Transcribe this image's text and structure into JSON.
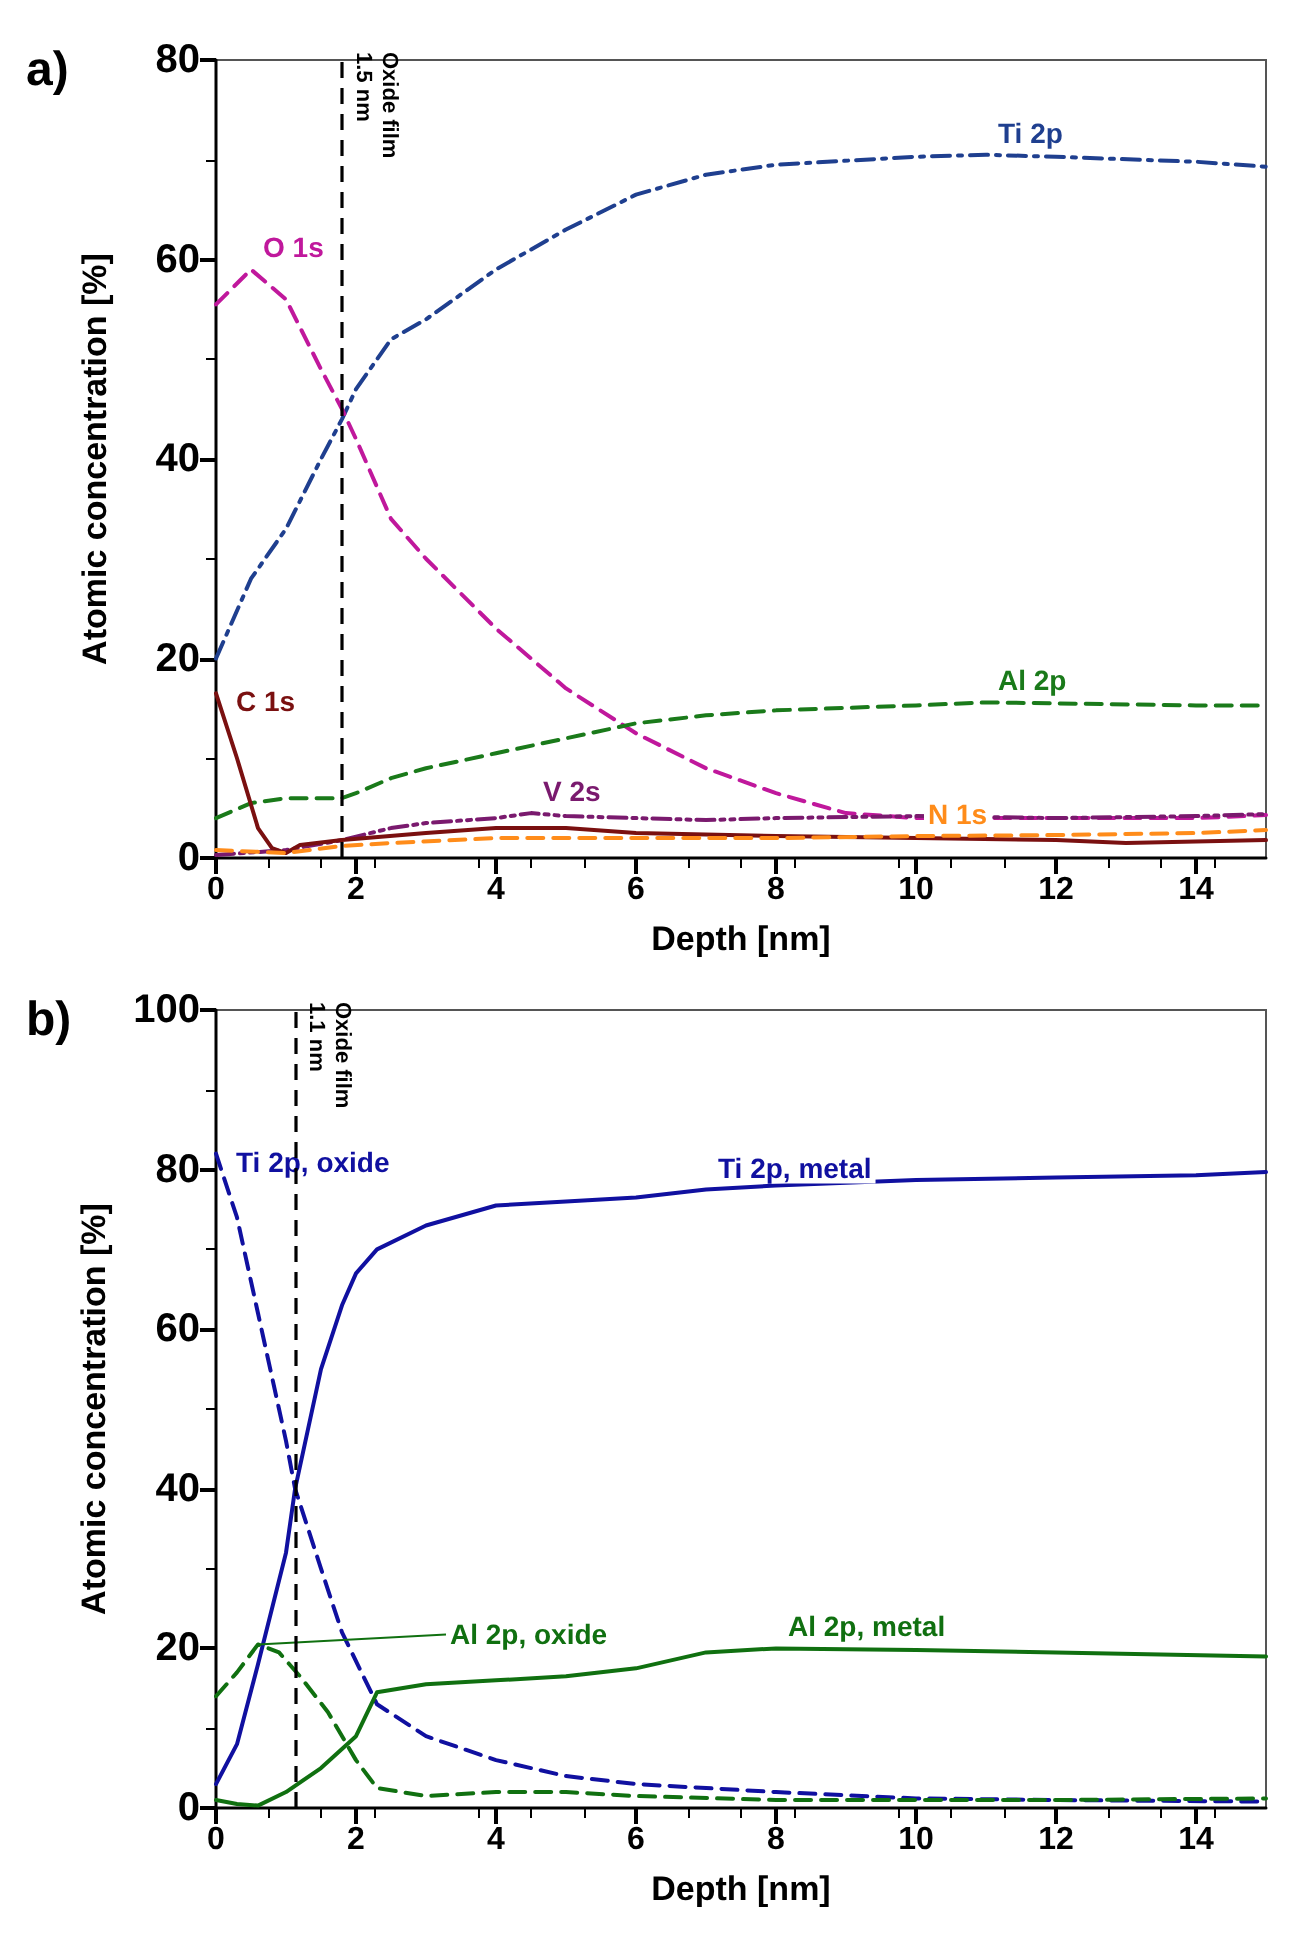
{
  "chart_data": [
    {
      "type": "line",
      "title": "a)",
      "xlabel": "Depth [nm]",
      "ylabel": "Atomic concentration [%]",
      "xlim": [
        0,
        15
      ],
      "ylim": [
        0,
        80
      ],
      "xticks": [
        0,
        2,
        4,
        6,
        8,
        10,
        12,
        14
      ],
      "yticks": [
        0,
        20,
        40,
        60,
        80
      ],
      "grid": false,
      "legend": false,
      "marker": "none",
      "ref_lines": [
        {
          "axis": "x",
          "value": 1.8,
          "label": "Oxide film\n1.5 nm",
          "color": "#000000",
          "line_style": "dashed"
        }
      ],
      "series": [
        {
          "name": "Ti 2p",
          "color": "#1f3f8f",
          "line_style": "dashdot",
          "x": [
            0,
            0.5,
            1,
            1.5,
            1.8,
            2,
            2.5,
            3,
            4,
            5,
            6,
            7,
            8,
            10,
            11,
            12,
            14,
            15
          ],
          "values": [
            20,
            28,
            33,
            40,
            44,
            47,
            52,
            54,
            59,
            63,
            66.5,
            68.5,
            69.5,
            70.3,
            70.5,
            70.3,
            69.8,
            69.3
          ]
        },
        {
          "name": "O 1s",
          "color": "#c0189c",
          "line_style": "dashed",
          "x": [
            0,
            0.5,
            1,
            1.5,
            1.8,
            2,
            2.5,
            3,
            4,
            5,
            6,
            7,
            8,
            9,
            10,
            12,
            14,
            15
          ],
          "values": [
            55.5,
            59,
            56,
            49,
            45,
            42,
            34,
            30,
            23,
            17,
            12.5,
            9,
            6.5,
            4.5,
            4,
            4,
            4,
            4.3
          ]
        },
        {
          "name": "Al 2p",
          "color": "#1a7a1a",
          "line_style": "dashed",
          "x": [
            0,
            0.5,
            1,
            1.5,
            1.8,
            2,
            2.5,
            3,
            4,
            5,
            6,
            7,
            8,
            10,
            11,
            12,
            14,
            15
          ],
          "values": [
            4,
            5.5,
            6,
            6,
            6,
            6.5,
            8,
            9,
            10.5,
            12,
            13.5,
            14.3,
            14.8,
            15.3,
            15.6,
            15.5,
            15.3,
            15.3
          ]
        },
        {
          "name": "V 2s",
          "color": "#7a1a6e",
          "line_style": "dashdotdot",
          "x": [
            0,
            1,
            1.8,
            2.5,
            3,
            4,
            4.5,
            5,
            6,
            7,
            8,
            10,
            12,
            14,
            15
          ],
          "values": [
            0.3,
            0.8,
            1.8,
            3,
            3.5,
            4,
            4.5,
            4.2,
            4,
            3.8,
            4,
            4.2,
            4,
            4.2,
            4.4
          ]
        },
        {
          "name": "C 1s",
          "color": "#7a1010",
          "line_style": "solid",
          "x": [
            0,
            0.3,
            0.6,
            0.8,
            1,
            1.2,
            1.8,
            3,
            4,
            5,
            6,
            8,
            10,
            12,
            13,
            15
          ],
          "values": [
            16.5,
            10,
            3,
            1,
            0.5,
            1.3,
            1.8,
            2.5,
            3,
            3,
            2.5,
            2.2,
            2,
            1.8,
            1.5,
            1.8
          ]
        },
        {
          "name": "N 1s",
          "color": "#ff8c1a",
          "line_style": "dashed",
          "x": [
            0,
            1,
            1.8,
            2.5,
            4,
            6,
            8,
            10,
            12,
            14,
            15
          ],
          "values": [
            0.8,
            0.5,
            1.2,
            1.5,
            2,
            2,
            2,
            2.2,
            2.3,
            2.5,
            2.8
          ]
        }
      ]
    },
    {
      "type": "line",
      "title": "b)",
      "xlabel": "Depth [nm]",
      "ylabel": "Atomic concentration [%]",
      "xlim": [
        0,
        15
      ],
      "ylim": [
        0,
        100
      ],
      "xticks": [
        0,
        2,
        4,
        6,
        8,
        10,
        12,
        14
      ],
      "yticks": [
        0,
        20,
        40,
        60,
        80,
        100
      ],
      "grid": false,
      "legend": false,
      "marker": "none",
      "ref_lines": [
        {
          "axis": "x",
          "value": 1.13,
          "label": "Oxide film\n1.1 nm",
          "color": "#000000",
          "line_style": "dashed"
        }
      ],
      "series": [
        {
          "name": "Ti 2p, metal",
          "color": "#1010a0",
          "line_style": "solid",
          "x": [
            0,
            0.3,
            0.6,
            1,
            1.13,
            1.5,
            1.8,
            2,
            2.3,
            3,
            4,
            5,
            6,
            7,
            8,
            10,
            12,
            14,
            15
          ],
          "values": [
            3,
            8,
            18,
            32,
            40,
            55,
            63,
            67,
            70,
            73,
            75.5,
            76,
            76.5,
            77.5,
            78,
            78.7,
            79,
            79.3,
            79.7
          ]
        },
        {
          "name": "Ti 2p, oxide",
          "color": "#1010a0",
          "line_style": "dashed",
          "x": [
            0,
            0.3,
            0.6,
            1,
            1.13,
            1.5,
            1.8,
            2.3,
            3,
            4,
            5,
            6,
            8,
            10,
            12,
            15
          ],
          "values": [
            82,
            74,
            62,
            46,
            40,
            30,
            22,
            13,
            9,
            6,
            4,
            3,
            2,
            1.2,
            1,
            0.8
          ]
        },
        {
          "name": "Al 2p, metal",
          "color": "#107010",
          "line_style": "solid",
          "x": [
            0,
            0.3,
            0.6,
            1,
            1.5,
            2,
            2.3,
            3,
            4,
            5,
            6,
            7,
            8,
            10,
            12,
            15
          ],
          "values": [
            1,
            0.5,
            0.3,
            2,
            5,
            9,
            14.5,
            15.5,
            16,
            16.5,
            17.5,
            19.5,
            20,
            19.8,
            19.5,
            19
          ]
        },
        {
          "name": "Al 2p, oxide",
          "color": "#107010",
          "line_style": "dashed",
          "x": [
            0,
            0.3,
            0.6,
            0.9,
            1.2,
            1.6,
            2,
            2.3,
            3,
            4,
            5,
            6,
            8,
            10,
            12,
            15
          ],
          "values": [
            14,
            17,
            20.5,
            19.5,
            16.5,
            12,
            6,
            2.5,
            1.5,
            2,
            2,
            1.5,
            1,
            1,
            1,
            1.2
          ]
        }
      ]
    }
  ]
}
